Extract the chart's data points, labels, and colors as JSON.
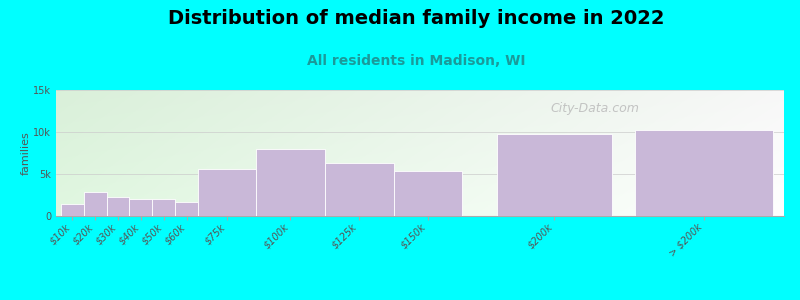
{
  "title": "Distribution of median family income in 2022",
  "subtitle": "All residents in Madison, WI",
  "ylabel": "families",
  "background_color": "#00FFFF",
  "bar_color": "#c9b8d8",
  "bar_edge_color": "#ffffff",
  "categories": [
    "$10k",
    "$20k",
    "$30k",
    "$40k",
    "$50k",
    "$60k",
    "$75k",
    "$100k",
    "$125k",
    "$150k",
    "$200k",
    "> $200k"
  ],
  "values": [
    1400,
    2800,
    2300,
    2000,
    2000,
    1700,
    5600,
    8000,
    6300,
    5300,
    9800,
    10200
  ],
  "ylim": [
    0,
    15000
  ],
  "yticks": [
    0,
    5000,
    10000,
    15000
  ],
  "ytick_labels": [
    "0",
    "5k",
    "10k",
    "15k"
  ],
  "title_fontsize": 14,
  "subtitle_fontsize": 10,
  "ylabel_fontsize": 8,
  "tick_fontsize": 7,
  "watermark_text": "City-Data.com",
  "positions": [
    0.5,
    1.5,
    2.5,
    3.5,
    4.5,
    5.5,
    7.25,
    10.0,
    13.0,
    16.0,
    21.5,
    28.0
  ],
  "widths": [
    1.0,
    1.0,
    1.0,
    1.0,
    1.0,
    1.0,
    2.5,
    3.0,
    3.0,
    3.0,
    5.0,
    6.0
  ],
  "xlim": [
    -0.2,
    31.5
  ],
  "subtitle_color": "#1a9a9a",
  "tick_color": "#555555"
}
